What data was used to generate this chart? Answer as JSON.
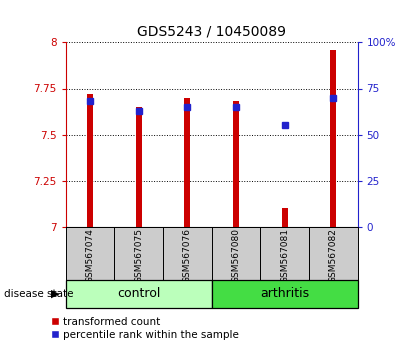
{
  "title": "GDS5243 / 10450089",
  "samples": [
    "GSM567074",
    "GSM567075",
    "GSM567076",
    "GSM567080",
    "GSM567081",
    "GSM567082"
  ],
  "red_values": [
    7.72,
    7.65,
    7.7,
    7.68,
    7.1,
    7.96
  ],
  "blue_values": [
    68,
    63,
    65,
    65,
    55,
    70
  ],
  "ylim_left": [
    7.0,
    8.0
  ],
  "ylim_right": [
    0,
    100
  ],
  "yticks_left": [
    7.0,
    7.25,
    7.5,
    7.75,
    8.0
  ],
  "yticks_right": [
    0,
    25,
    50,
    75,
    100
  ],
  "ytick_labels_left": [
    "7",
    "7.25",
    "7.5",
    "7.75",
    "8"
  ],
  "ytick_labels_right": [
    "0",
    "25",
    "50",
    "75",
    "100%"
  ],
  "red_color": "#cc0000",
  "blue_color": "#2222cc",
  "control_color": "#bbffbb",
  "arthritis_color": "#44dd44",
  "bar_bg_color": "#cccccc",
  "red_bar_width": 0.12,
  "blue_marker_size": 5,
  "legend_items": [
    "transformed count",
    "percentile rank within the sample"
  ],
  "group_label": "disease state",
  "control_groups": [
    0,
    1,
    2
  ],
  "arthritis_groups": [
    3,
    4,
    5
  ]
}
